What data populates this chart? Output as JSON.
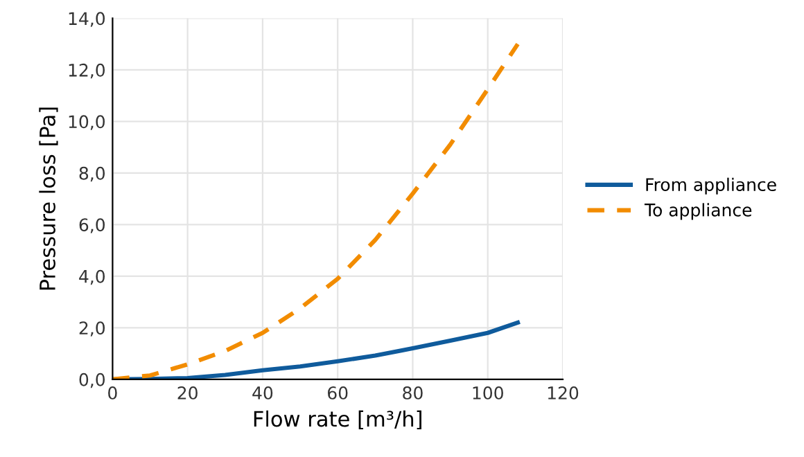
{
  "chart_data": {
    "type": "line",
    "xlabel": "Flow rate [m³/h]",
    "ylabel": "Pressure loss [Pa]",
    "xlim": [
      0,
      120
    ],
    "xticks": [
      0,
      20,
      40,
      60,
      80,
      100,
      120
    ],
    "ylim": [
      0,
      14
    ],
    "yticks": [
      {
        "value": 0,
        "label": "0,0"
      },
      {
        "value": 2,
        "label": "2,0"
      },
      {
        "value": 4,
        "label": "4,0"
      },
      {
        "value": 6,
        "label": "6,0"
      },
      {
        "value": 8,
        "label": "8,0"
      },
      {
        "value": 10,
        "label": "10,0"
      },
      {
        "value": 12,
        "label": "12,0"
      },
      {
        "value": 14,
        "label": "14,0"
      }
    ],
    "grid": true,
    "legend": "right",
    "series": [
      {
        "name": "From appliance",
        "color": "#0f5b9c",
        "line_style": "solid",
        "x": [
          0,
          10,
          20,
          30,
          40,
          50,
          60,
          70,
          80,
          90,
          100,
          108
        ],
        "values": [
          0,
          0.01,
          0.05,
          0.17,
          0.35,
          0.5,
          0.7,
          0.92,
          1.2,
          1.5,
          1.8,
          2.2
        ]
      },
      {
        "name": "To appliance",
        "color": "#f28c00",
        "line_style": "dashed",
        "x": [
          0,
          10,
          20,
          30,
          40,
          50,
          60,
          70,
          80,
          90,
          100,
          108
        ],
        "values": [
          0,
          0.15,
          0.58,
          1.1,
          1.8,
          2.75,
          3.9,
          5.4,
          7.2,
          9.1,
          11.25,
          13.0
        ]
      }
    ]
  }
}
